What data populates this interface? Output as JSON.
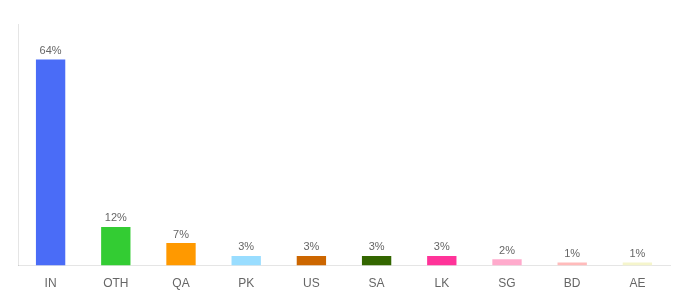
{
  "chart_data": {
    "type": "bar",
    "categories": [
      "IN",
      "OTH",
      "QA",
      "PK",
      "US",
      "SA",
      "LK",
      "SG",
      "BD",
      "AE"
    ],
    "values": [
      64,
      12,
      7,
      3,
      3,
      3,
      3,
      2,
      1,
      1
    ],
    "value_labels": [
      "64%",
      "12%",
      "7%",
      "3%",
      "3%",
      "3%",
      "3%",
      "2%",
      "1%",
      "1%"
    ],
    "colors": [
      "#4a6cf7",
      "#33cc33",
      "#ff9900",
      "#99ddff",
      "#cc6600",
      "#336600",
      "#ff3399",
      "#ffaacc",
      "#ffbbbb",
      "#f5f5cc"
    ],
    "ylim": [
      0,
      75
    ],
    "grid": false,
    "data_labels": true,
    "tick_labels": "x"
  }
}
